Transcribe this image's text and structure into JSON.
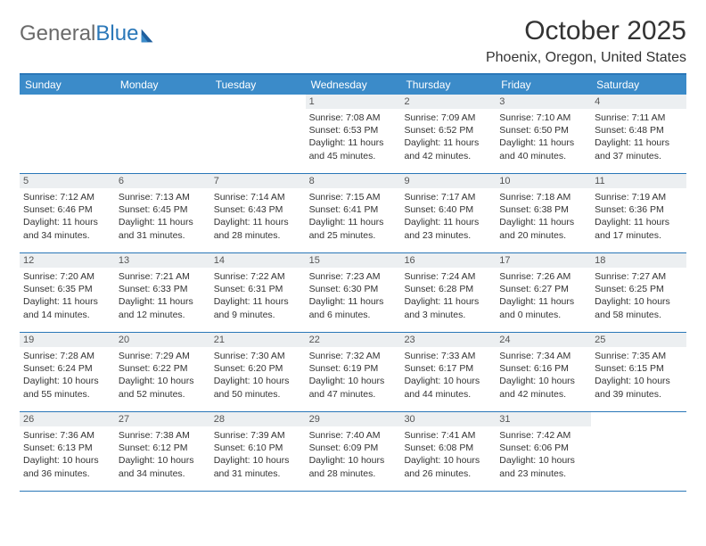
{
  "logo": {
    "word1": "General",
    "word2": "Blue"
  },
  "title": "October 2025",
  "location": "Phoenix, Oregon, United States",
  "colors": {
    "header_bg": "#3b8bc9",
    "border": "#2a77b8",
    "daynum_bg": "#eceff1",
    "page_bg": "#ffffff",
    "text": "#333333",
    "logo_gray": "#6a6a6a",
    "logo_blue": "#2a77b8"
  },
  "day_headers": [
    "Sunday",
    "Monday",
    "Tuesday",
    "Wednesday",
    "Thursday",
    "Friday",
    "Saturday"
  ],
  "weeks": [
    [
      null,
      null,
      null,
      {
        "n": "1",
        "sunrise": "7:08 AM",
        "sunset": "6:53 PM",
        "dl1": "11 hours",
        "dl2": "45 minutes"
      },
      {
        "n": "2",
        "sunrise": "7:09 AM",
        "sunset": "6:52 PM",
        "dl1": "11 hours",
        "dl2": "42 minutes"
      },
      {
        "n": "3",
        "sunrise": "7:10 AM",
        "sunset": "6:50 PM",
        "dl1": "11 hours",
        "dl2": "40 minutes"
      },
      {
        "n": "4",
        "sunrise": "7:11 AM",
        "sunset": "6:48 PM",
        "dl1": "11 hours",
        "dl2": "37 minutes"
      }
    ],
    [
      {
        "n": "5",
        "sunrise": "7:12 AM",
        "sunset": "6:46 PM",
        "dl1": "11 hours",
        "dl2": "34 minutes"
      },
      {
        "n": "6",
        "sunrise": "7:13 AM",
        "sunset": "6:45 PM",
        "dl1": "11 hours",
        "dl2": "31 minutes"
      },
      {
        "n": "7",
        "sunrise": "7:14 AM",
        "sunset": "6:43 PM",
        "dl1": "11 hours",
        "dl2": "28 minutes"
      },
      {
        "n": "8",
        "sunrise": "7:15 AM",
        "sunset": "6:41 PM",
        "dl1": "11 hours",
        "dl2": "25 minutes"
      },
      {
        "n": "9",
        "sunrise": "7:17 AM",
        "sunset": "6:40 PM",
        "dl1": "11 hours",
        "dl2": "23 minutes"
      },
      {
        "n": "10",
        "sunrise": "7:18 AM",
        "sunset": "6:38 PM",
        "dl1": "11 hours",
        "dl2": "20 minutes"
      },
      {
        "n": "11",
        "sunrise": "7:19 AM",
        "sunset": "6:36 PM",
        "dl1": "11 hours",
        "dl2": "17 minutes"
      }
    ],
    [
      {
        "n": "12",
        "sunrise": "7:20 AM",
        "sunset": "6:35 PM",
        "dl1": "11 hours",
        "dl2": "14 minutes"
      },
      {
        "n": "13",
        "sunrise": "7:21 AM",
        "sunset": "6:33 PM",
        "dl1": "11 hours",
        "dl2": "12 minutes"
      },
      {
        "n": "14",
        "sunrise": "7:22 AM",
        "sunset": "6:31 PM",
        "dl1": "11 hours",
        "dl2": "9 minutes"
      },
      {
        "n": "15",
        "sunrise": "7:23 AM",
        "sunset": "6:30 PM",
        "dl1": "11 hours",
        "dl2": "6 minutes"
      },
      {
        "n": "16",
        "sunrise": "7:24 AM",
        "sunset": "6:28 PM",
        "dl1": "11 hours",
        "dl2": "3 minutes"
      },
      {
        "n": "17",
        "sunrise": "7:26 AM",
        "sunset": "6:27 PM",
        "dl1": "11 hours",
        "dl2": "0 minutes"
      },
      {
        "n": "18",
        "sunrise": "7:27 AM",
        "sunset": "6:25 PM",
        "dl1": "10 hours",
        "dl2": "58 minutes"
      }
    ],
    [
      {
        "n": "19",
        "sunrise": "7:28 AM",
        "sunset": "6:24 PM",
        "dl1": "10 hours",
        "dl2": "55 minutes"
      },
      {
        "n": "20",
        "sunrise": "7:29 AM",
        "sunset": "6:22 PM",
        "dl1": "10 hours",
        "dl2": "52 minutes"
      },
      {
        "n": "21",
        "sunrise": "7:30 AM",
        "sunset": "6:20 PM",
        "dl1": "10 hours",
        "dl2": "50 minutes"
      },
      {
        "n": "22",
        "sunrise": "7:32 AM",
        "sunset": "6:19 PM",
        "dl1": "10 hours",
        "dl2": "47 minutes"
      },
      {
        "n": "23",
        "sunrise": "7:33 AM",
        "sunset": "6:17 PM",
        "dl1": "10 hours",
        "dl2": "44 minutes"
      },
      {
        "n": "24",
        "sunrise": "7:34 AM",
        "sunset": "6:16 PM",
        "dl1": "10 hours",
        "dl2": "42 minutes"
      },
      {
        "n": "25",
        "sunrise": "7:35 AM",
        "sunset": "6:15 PM",
        "dl1": "10 hours",
        "dl2": "39 minutes"
      }
    ],
    [
      {
        "n": "26",
        "sunrise": "7:36 AM",
        "sunset": "6:13 PM",
        "dl1": "10 hours",
        "dl2": "36 minutes"
      },
      {
        "n": "27",
        "sunrise": "7:38 AM",
        "sunset": "6:12 PM",
        "dl1": "10 hours",
        "dl2": "34 minutes"
      },
      {
        "n": "28",
        "sunrise": "7:39 AM",
        "sunset": "6:10 PM",
        "dl1": "10 hours",
        "dl2": "31 minutes"
      },
      {
        "n": "29",
        "sunrise": "7:40 AM",
        "sunset": "6:09 PM",
        "dl1": "10 hours",
        "dl2": "28 minutes"
      },
      {
        "n": "30",
        "sunrise": "7:41 AM",
        "sunset": "6:08 PM",
        "dl1": "10 hours",
        "dl2": "26 minutes"
      },
      {
        "n": "31",
        "sunrise": "7:42 AM",
        "sunset": "6:06 PM",
        "dl1": "10 hours",
        "dl2": "23 minutes"
      },
      null
    ]
  ],
  "labels": {
    "sunrise_prefix": "Sunrise: ",
    "sunset_prefix": "Sunset: ",
    "daylight_prefix": "Daylight: ",
    "and": "and "
  }
}
